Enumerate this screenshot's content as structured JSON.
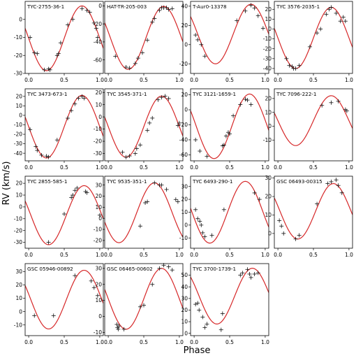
{
  "figure": {
    "xlabel": "Phase",
    "ylabel": "RV (km/s)"
  },
  "chart_data": [
    {
      "type": "scatter",
      "title": "TYC-2755-36-1",
      "xlim": [
        -0.05,
        1.05
      ],
      "ylim": [
        -30,
        10
      ],
      "yticks": [
        -30,
        -20,
        -10,
        0
      ],
      "xticks": [
        0.0,
        0.5,
        1.0
      ],
      "xticklabels": [
        "0.0",
        "0.5",
        "1.0"
      ],
      "curve": {
        "gamma": -10.5,
        "K": 18,
        "phase_max": 0.75
      },
      "points": [
        [
          0.02,
          -10
        ],
        [
          0.08,
          -18.5
        ],
        [
          0.12,
          -19
        ],
        [
          0.22,
          -28
        ],
        [
          0.28,
          -27.5
        ],
        [
          0.3,
          -28
        ],
        [
          0.4,
          -20
        ],
        [
          0.42,
          -19
        ],
        [
          0.45,
          -13
        ],
        [
          0.55,
          -3
        ],
        [
          0.62,
          0
        ],
        [
          0.75,
          6
        ],
        [
          0.82,
          5
        ],
        [
          0.86,
          4
        ],
        [
          0.92,
          -2
        ],
        [
          0.95,
          -5
        ],
        [
          0.97,
          -10
        ]
      ]
    },
    {
      "type": "scatter",
      "title": "HAT-TR-205-003",
      "xlim": [
        -0.05,
        1.05
      ],
      "ylim": [
        -75,
        5
      ],
      "yticks": [
        -60,
        -40,
        -20,
        0
      ],
      "xticks": [
        0.0,
        0.5,
        1.0
      ],
      "xticklabels": [
        "0.0",
        "0.5",
        "1.0"
      ],
      "curve": {
        "gamma": -35.5,
        "K": 35,
        "phase_max": 0.78
      },
      "points": [
        [
          0.1,
          -56
        ],
        [
          0.25,
          -68
        ],
        [
          0.3,
          -69
        ],
        [
          0.38,
          -64
        ],
        [
          0.42,
          -58
        ],
        [
          0.48,
          -52
        ],
        [
          0.55,
          -38
        ],
        [
          0.62,
          -18
        ],
        [
          0.65,
          -14
        ],
        [
          0.72,
          -5
        ],
        [
          0.75,
          -2
        ],
        [
          0.78,
          -2
        ],
        [
          0.82,
          -2
        ],
        [
          0.85,
          -4
        ],
        [
          0.9,
          -3
        ]
      ]
    },
    {
      "type": "scatter",
      "title": "T-Aur0-13378",
      "xlim": [
        -0.05,
        1.05
      ],
      "ylim": [
        -30,
        45
      ],
      "yticks": [
        -20,
        0,
        20,
        40
      ],
      "xticks": [
        0.0,
        0.5,
        1.0
      ],
      "xticklabels": [
        "0.0",
        "0.5",
        "1.0"
      ],
      "curve": {
        "gamma": 11,
        "K": 31,
        "phase_max": 0.8
      },
      "points": [
        [
          0.02,
          10
        ],
        [
          0.05,
          5
        ],
        [
          0.1,
          0
        ],
        [
          0.15,
          -12
        ],
        [
          0.6,
          25
        ],
        [
          0.72,
          35
        ],
        [
          0.8,
          41
        ],
        [
          0.85,
          38
        ],
        [
          0.9,
          30
        ],
        [
          0.97,
          17
        ]
      ]
    },
    {
      "type": "scatter",
      "title": "TYC 3576-2035-1",
      "xlim": [
        -0.05,
        1.05
      ],
      "ylim": [
        -45,
        28
      ],
      "yticks": [
        -40,
        -30,
        -20,
        -10,
        0,
        10,
        20
      ],
      "xticks": [
        0.0,
        0.5,
        1.0
      ],
      "xticklabels": [
        "0.0",
        "0.5",
        "1.0"
      ],
      "curve": {
        "gamma": -9,
        "K": 31,
        "phase_max": 0.75
      },
      "points": [
        [
          0.12,
          -30
        ],
        [
          0.16,
          -37
        ],
        [
          0.2,
          -38
        ],
        [
          0.22,
          -40
        ],
        [
          0.25,
          -40
        ],
        [
          0.3,
          -37
        ],
        [
          0.45,
          -18
        ],
        [
          0.55,
          -4
        ],
        [
          0.6,
          0
        ],
        [
          0.68,
          15
        ],
        [
          0.72,
          20
        ],
        [
          0.75,
          22
        ],
        [
          0.82,
          16
        ],
        [
          0.88,
          8
        ],
        [
          0.92,
          12
        ],
        [
          0.95,
          8
        ]
      ]
    },
    {
      "type": "scatter",
      "title": "TYC 3473-673-1",
      "xlim": [
        -0.05,
        1.05
      ],
      "ylim": [
        -48,
        28
      ],
      "yticks": [
        -40,
        -30,
        -20,
        -10,
        0,
        10,
        20
      ],
      "xticks": [
        0.0,
        0.5,
        1.0
      ],
      "xticklabels": [
        "0.0",
        "0.5",
        "1.0"
      ],
      "curve": {
        "gamma": -12,
        "K": 33,
        "phase_max": 0.75
      },
      "points": [
        [
          0.02,
          -15
        ],
        [
          0.1,
          -33
        ],
        [
          0.12,
          -37
        ],
        [
          0.18,
          -42
        ],
        [
          0.25,
          -43
        ],
        [
          0.28,
          -44
        ],
        [
          0.4,
          -26
        ],
        [
          0.55,
          -3
        ],
        [
          0.6,
          5
        ],
        [
          0.65,
          12
        ],
        [
          0.7,
          18
        ],
        [
          0.75,
          20
        ],
        [
          0.78,
          18
        ]
      ]
    },
    {
      "type": "scatter",
      "title": "TYC 3545-371-1",
      "xlim": [
        -0.05,
        1.05
      ],
      "ylim": [
        -36,
        23
      ],
      "yticks": [
        -30,
        -20,
        -10,
        0,
        10,
        20
      ],
      "xticks": [
        0.0,
        0.5,
        1.0
      ],
      "xticklabels": [
        "0.0",
        "0.5",
        "1.0"
      ],
      "curve": {
        "gamma": -8,
        "K": 25,
        "phase_max": 0.75
      },
      "points": [
        [
          0.2,
          -29
        ],
        [
          0.25,
          -33
        ],
        [
          0.3,
          -32
        ],
        [
          0.38,
          -30
        ],
        [
          0.4,
          -26
        ],
        [
          0.45,
          -23
        ],
        [
          0.55,
          -11
        ],
        [
          0.58,
          -5
        ],
        [
          0.62,
          -1
        ],
        [
          0.7,
          14
        ],
        [
          0.75,
          16
        ],
        [
          0.8,
          17
        ],
        [
          0.85,
          15
        ],
        [
          0.98,
          -7
        ],
        [
          1.0,
          -5
        ]
      ]
    },
    {
      "type": "scatter",
      "title": "TYC 3121-1659-1",
      "xlim": [
        -0.05,
        1.05
      ],
      "ylim": [
        -68,
        28
      ],
      "yticks": [
        -60,
        -40,
        -20,
        0,
        20
      ],
      "xticks": [
        0.0,
        0.5,
        1.0
      ],
      "xticklabels": [
        "0.0",
        "0.5",
        "1.0"
      ],
      "curve": {
        "gamma": -22,
        "K": 43,
        "phase_max": 0.78
      },
      "points": [
        [
          0.02,
          -40
        ],
        [
          0.08,
          -55
        ],
        [
          0.18,
          -62
        ],
        [
          0.4,
          -48
        ],
        [
          0.42,
          -47
        ],
        [
          0.45,
          -35
        ],
        [
          0.48,
          -30
        ],
        [
          0.5,
          -32
        ],
        [
          0.55,
          -8
        ],
        [
          0.65,
          7
        ],
        [
          0.72,
          14
        ],
        [
          0.75,
          13
        ],
        [
          0.8,
          7
        ]
      ]
    },
    {
      "type": "scatter",
      "title": "TYC 7096-222-1",
      "xlim": [
        -0.05,
        1.05
      ],
      "ylim": [
        -25,
        27
      ],
      "yticks": [
        -10,
        0,
        10,
        20
      ],
      "xticks": [
        0.0,
        0.5,
        1.0
      ],
      "xticklabels": [
        "0.0",
        "0.5",
        "1.0"
      ],
      "curve": {
        "gamma": 4,
        "K": 18,
        "phase_max": 0.75
      },
      "points": [
        [
          0.62,
          15
        ],
        [
          0.75,
          17
        ],
        [
          0.85,
          18
        ],
        [
          0.95,
          12
        ],
        [
          0.97,
          11
        ]
      ]
    },
    {
      "type": "scatter",
      "title": "TYC 2855-585-1",
      "xlim": [
        -0.05,
        1.05
      ],
      "ylim": [
        -35,
        26
      ],
      "yticks": [
        -30,
        -20,
        -10,
        0,
        10,
        20
      ],
      "xticks": [
        0.0,
        0.5,
        1.0
      ],
      "xticklabels": [
        "0.0",
        "0.5",
        "1.0"
      ],
      "curve": {
        "gamma": -7,
        "K": 25,
        "phase_max": 0.78
      },
      "points": [
        [
          0.28,
          -30
        ],
        [
          0.5,
          -6
        ],
        [
          0.6,
          8
        ],
        [
          0.62,
          10
        ],
        [
          0.65,
          14
        ],
        [
          0.68,
          16
        ],
        [
          0.8,
          13
        ],
        [
          0.82,
          12
        ],
        [
          1.0,
          -7
        ]
      ]
    },
    {
      "type": "scatter",
      "title": "TYC 9535-351-1",
      "xlim": [
        -0.05,
        1.05
      ],
      "ylim": [
        -27,
        38
      ],
      "yticks": [
        -20,
        -10,
        0,
        10,
        20,
        30
      ],
      "xticks": [
        0.0,
        0.5,
        1.0
      ],
      "xticklabels": [
        "0.0",
        "0.5",
        "1.0"
      ],
      "curve": {
        "gamma": 5,
        "K": 27,
        "phase_max": 0.65
      },
      "points": [
        [
          0.45,
          -7
        ],
        [
          0.52,
          14
        ],
        [
          0.55,
          15
        ],
        [
          0.65,
          32
        ],
        [
          0.72,
          30
        ],
        [
          0.75,
          30
        ],
        [
          0.82,
          26
        ],
        [
          0.95,
          17
        ],
        [
          0.98,
          15
        ]
      ]
    },
    {
      "type": "scatter",
      "title": "TYC 6493-290-1",
      "xlim": [
        -0.05,
        1.05
      ],
      "ylim": [
        -18,
        38
      ],
      "yticks": [
        -10,
        0,
        10,
        20,
        30
      ],
      "xticks": [
        0.0,
        0.5,
        1.0
      ],
      "xticklabels": [
        "0.0",
        "0.5",
        "1.0"
      ],
      "curve": {
        "gamma": 10,
        "K": 24,
        "phase_max": 0.72
      },
      "points": [
        [
          0.02,
          12
        ],
        [
          0.05,
          5
        ],
        [
          0.08,
          3
        ],
        [
          0.1,
          0
        ],
        [
          0.12,
          -6
        ],
        [
          0.15,
          -9
        ],
        [
          0.25,
          -8
        ],
        [
          0.42,
          12
        ],
        [
          0.85,
          25
        ],
        [
          0.92,
          20
        ]
      ]
    },
    {
      "type": "scatter",
      "title": "GSC 06493-00315",
      "xlim": [
        -0.05,
        1.05
      ],
      "ylim": [
        -8,
        31
      ],
      "yticks": [
        0,
        10,
        20,
        30
      ],
      "xticks": [
        0.0,
        0.5,
        1.0
      ],
      "xticklabels": [
        "0.0",
        "0.5",
        "1.0"
      ],
      "curve": {
        "gamma": 12,
        "K": 15,
        "phase_max": 0.78
      },
      "points": [
        [
          0.02,
          7
        ],
        [
          0.05,
          4
        ],
        [
          0.08,
          0
        ],
        [
          0.25,
          -3
        ],
        [
          0.3,
          -1
        ],
        [
          0.55,
          16
        ],
        [
          0.7,
          27
        ],
        [
          0.75,
          28
        ],
        [
          0.82,
          29
        ],
        [
          0.85,
          26
        ],
        [
          0.9,
          22
        ]
      ]
    },
    {
      "type": "scatter",
      "title": "GSC 05946-00892",
      "xlim": [
        -0.05,
        1.05
      ],
      "ylim": [
        -18,
        36
      ],
      "yticks": [
        -10,
        0,
        10,
        20,
        30
      ],
      "xticks": [
        0.0,
        0.5,
        1.0
      ],
      "xticklabels": [
        "0.0",
        "0.5",
        "1.0"
      ],
      "curve": {
        "gamma": 9,
        "K": 22,
        "phase_max": 0.78
      },
      "points": [
        [
          0.08,
          -3
        ],
        [
          0.35,
          -3
        ],
        [
          0.65,
          27
        ],
        [
          0.88,
          23
        ],
        [
          0.92,
          18
        ],
        [
          0.97,
          12
        ]
      ]
    },
    {
      "type": "scatter",
      "title": "GSC 06465-00602",
      "xlim": [
        -0.05,
        1.05
      ],
      "ylim": [
        -12,
        33
      ],
      "yticks": [
        -10,
        0,
        10,
        20,
        30
      ],
      "xticks": [
        0.0,
        0.5,
        1.0
      ],
      "xticklabels": [
        "0.0",
        "0.5",
        "1.0"
      ],
      "curve": {
        "gamma": 11,
        "K": 19,
        "phase_max": 0.75
      },
      "points": [
        [
          0.12,
          -5
        ],
        [
          0.13,
          -7
        ],
        [
          0.14,
          -8
        ],
        [
          0.15,
          -6
        ],
        [
          0.22,
          -8
        ],
        [
          0.45,
          6
        ],
        [
          0.5,
          7
        ],
        [
          0.62,
          20
        ],
        [
          0.72,
          30
        ],
        [
          0.78,
          32
        ],
        [
          0.85,
          31
        ],
        [
          0.9,
          29
        ]
      ]
    },
    {
      "type": "scatter",
      "title": "TYC 3700-1739-1",
      "xlim": [
        -0.05,
        1.05
      ],
      "ylim": [
        -2,
        60
      ],
      "yticks": [
        0,
        10,
        20,
        30,
        40,
        50
      ],
      "xticks": [
        0.0,
        0.5,
        1.0
      ],
      "xticklabels": [
        "0.0",
        "0.5",
        "1.0"
      ],
      "curve": {
        "gamma": 32,
        "K": 24,
        "phase_max": 0.82
      },
      "points": [
        [
          0.02,
          25
        ],
        [
          0.05,
          26
        ],
        [
          0.07,
          20
        ],
        [
          0.12,
          14
        ],
        [
          0.15,
          5
        ],
        [
          0.18,
          8
        ],
        [
          0.38,
          3
        ],
        [
          0.4,
          17
        ],
        [
          0.65,
          50
        ],
        [
          0.68,
          52
        ],
        [
          0.75,
          55
        ],
        [
          0.78,
          51
        ],
        [
          0.8,
          48
        ],
        [
          0.85,
          51
        ],
        [
          0.9,
          52
        ]
      ]
    }
  ]
}
